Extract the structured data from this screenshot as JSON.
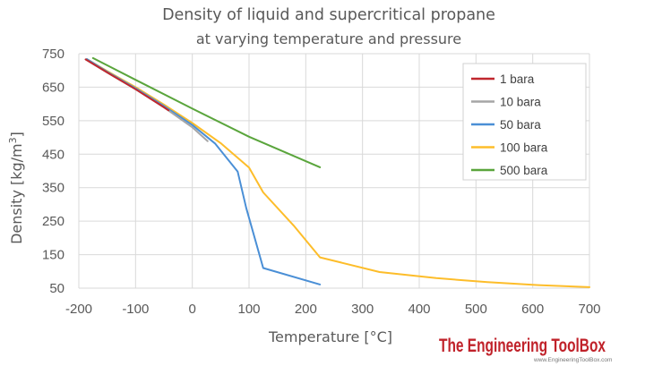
{
  "chart_data": {
    "type": "line",
    "title": "Density of liquid and supercritical propane",
    "subtitle": "at varying temperature and pressure",
    "xlabel": "Temperature [°C]",
    "ylabel_main": "Density [kg/m",
    "ylabel_sup": "3",
    "ylabel_end": "]",
    "xlim": [
      -200,
      700
    ],
    "ylim": [
      50,
      750
    ],
    "xticks": [
      -200,
      -100,
      0,
      100,
      200,
      300,
      400,
      500,
      600,
      700
    ],
    "yticks": [
      50,
      150,
      250,
      350,
      450,
      550,
      650,
      750
    ],
    "xtick_labels": [
      "-200",
      "-100",
      "0",
      "100",
      "200",
      "300",
      "400",
      "500",
      "600",
      "700"
    ],
    "ytick_labels": [
      "50",
      "150",
      "250",
      "350",
      "450",
      "550",
      "650",
      "750"
    ],
    "legend_position": "top-right",
    "series": [
      {
        "name": "1 bara",
        "color": "#c0272d",
        "x": [
          -188,
          -150,
          -100,
          -50,
          -42
        ],
        "y": [
          733,
          694,
          644,
          590,
          581
        ]
      },
      {
        "name": "10 bara",
        "color": "#a6a6a6",
        "x": [
          -188,
          -150,
          -100,
          -50,
          0,
          27
        ],
        "y": [
          733,
          694,
          644,
          590,
          530,
          489
        ]
      },
      {
        "name": "50 bara",
        "color": "#4a8fd6",
        "x": [
          -186,
          -150,
          -100,
          -50,
          0,
          40,
          80,
          95,
          125,
          225
        ],
        "y": [
          734,
          696,
          647,
          594,
          537,
          482,
          398,
          290,
          110,
          61
        ]
      },
      {
        "name": "100 bara",
        "color": "#fdbd2a",
        "x": [
          -186,
          -150,
          -100,
          -50,
          0,
          50,
          100,
          125,
          180,
          225,
          330,
          430,
          520,
          610,
          700
        ],
        "y": [
          734,
          698,
          650,
          598,
          543,
          483,
          410,
          336,
          234,
          142,
          98,
          80,
          68,
          59,
          53
        ]
      },
      {
        "name": "500 bara",
        "color": "#5aa53c",
        "x": [
          -175,
          -100,
          0,
          100,
          225
        ],
        "y": [
          737,
          672,
          586,
          502,
          411
        ]
      }
    ]
  },
  "brand": {
    "name": "The Engineering ToolBox",
    "url": "www.EngineeringToolBox.com"
  }
}
